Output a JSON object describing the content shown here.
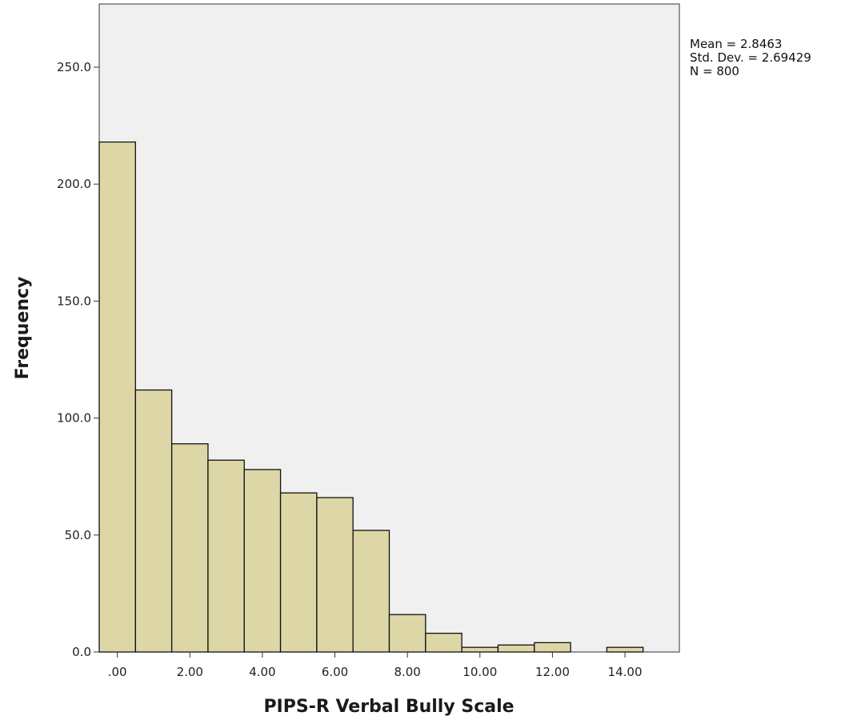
{
  "chart_data": {
    "type": "bar",
    "subtype": "histogram",
    "xlabel": "PIPS-R Verbal Bully Scale",
    "ylabel": "Frequency",
    "xlim": [
      -0.5,
      15.5
    ],
    "ylim": [
      0,
      277
    ],
    "bin_width": 1,
    "bins": [
      {
        "x": 0,
        "value": 218
      },
      {
        "x": 1,
        "value": 112
      },
      {
        "x": 2,
        "value": 89
      },
      {
        "x": 3,
        "value": 82
      },
      {
        "x": 4,
        "value": 78
      },
      {
        "x": 5,
        "value": 68
      },
      {
        "x": 6,
        "value": 66
      },
      {
        "x": 7,
        "value": 52
      },
      {
        "x": 8,
        "value": 16
      },
      {
        "x": 9,
        "value": 8
      },
      {
        "x": 10,
        "value": 2
      },
      {
        "x": 11,
        "value": 3
      },
      {
        "x": 12,
        "value": 4
      },
      {
        "x": 14,
        "value": 2
      }
    ],
    "xticks": [
      {
        "value": 0,
        "label": ".00"
      },
      {
        "value": 2,
        "label": "2.00"
      },
      {
        "value": 4,
        "label": "4.00"
      },
      {
        "value": 6,
        "label": "6.00"
      },
      {
        "value": 8,
        "label": "8.00"
      },
      {
        "value": 10,
        "label": "10.00"
      },
      {
        "value": 12,
        "label": "12.00"
      },
      {
        "value": 14,
        "label": "14.00"
      }
    ],
    "yticks": [
      {
        "value": 0,
        "label": "0.0"
      },
      {
        "value": 50,
        "label": "50.0"
      },
      {
        "value": 100,
        "label": "100.0"
      },
      {
        "value": 150,
        "label": "150.0"
      },
      {
        "value": 200,
        "label": "200.0"
      },
      {
        "value": 250,
        "label": "250.0"
      }
    ],
    "stats": [
      "Mean = 2.8463",
      "Std. Dev. = 2.69429",
      "N = 800"
    ],
    "grid": false,
    "colors": {
      "bar_fill": "#ddd6a6",
      "bar_stroke": "#111111",
      "plot_background": "#f0f0f0",
      "page_background": "#ffffff"
    }
  }
}
